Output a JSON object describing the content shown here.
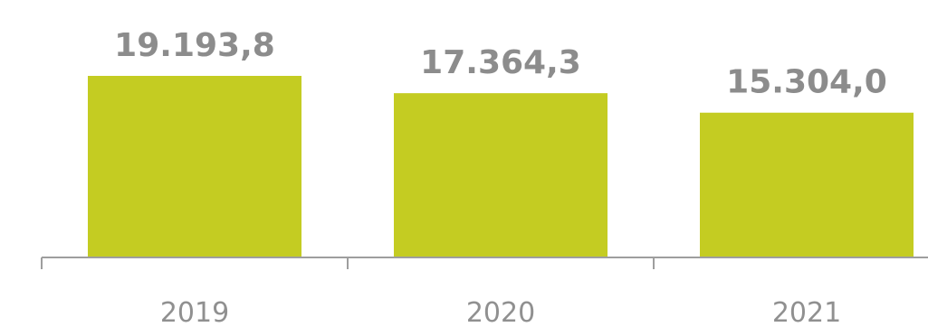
{
  "chart_data": {
    "type": "bar",
    "categories": [
      "2019",
      "2020",
      "2021"
    ],
    "values": [
      19193.8,
      17364.3,
      15304.0
    ],
    "data_labels": [
      "19.193,8",
      "17.364,3",
      "15.304,0"
    ],
    "title": "",
    "xlabel": "",
    "ylabel": "",
    "ylim": [
      0,
      19193.8
    ],
    "grid": false,
    "legend": "none"
  },
  "colors": {
    "bar": "#c4cc22",
    "axis": "#9e9e9e",
    "value_label": "#8c8c8c",
    "tick_label": "#909090"
  }
}
